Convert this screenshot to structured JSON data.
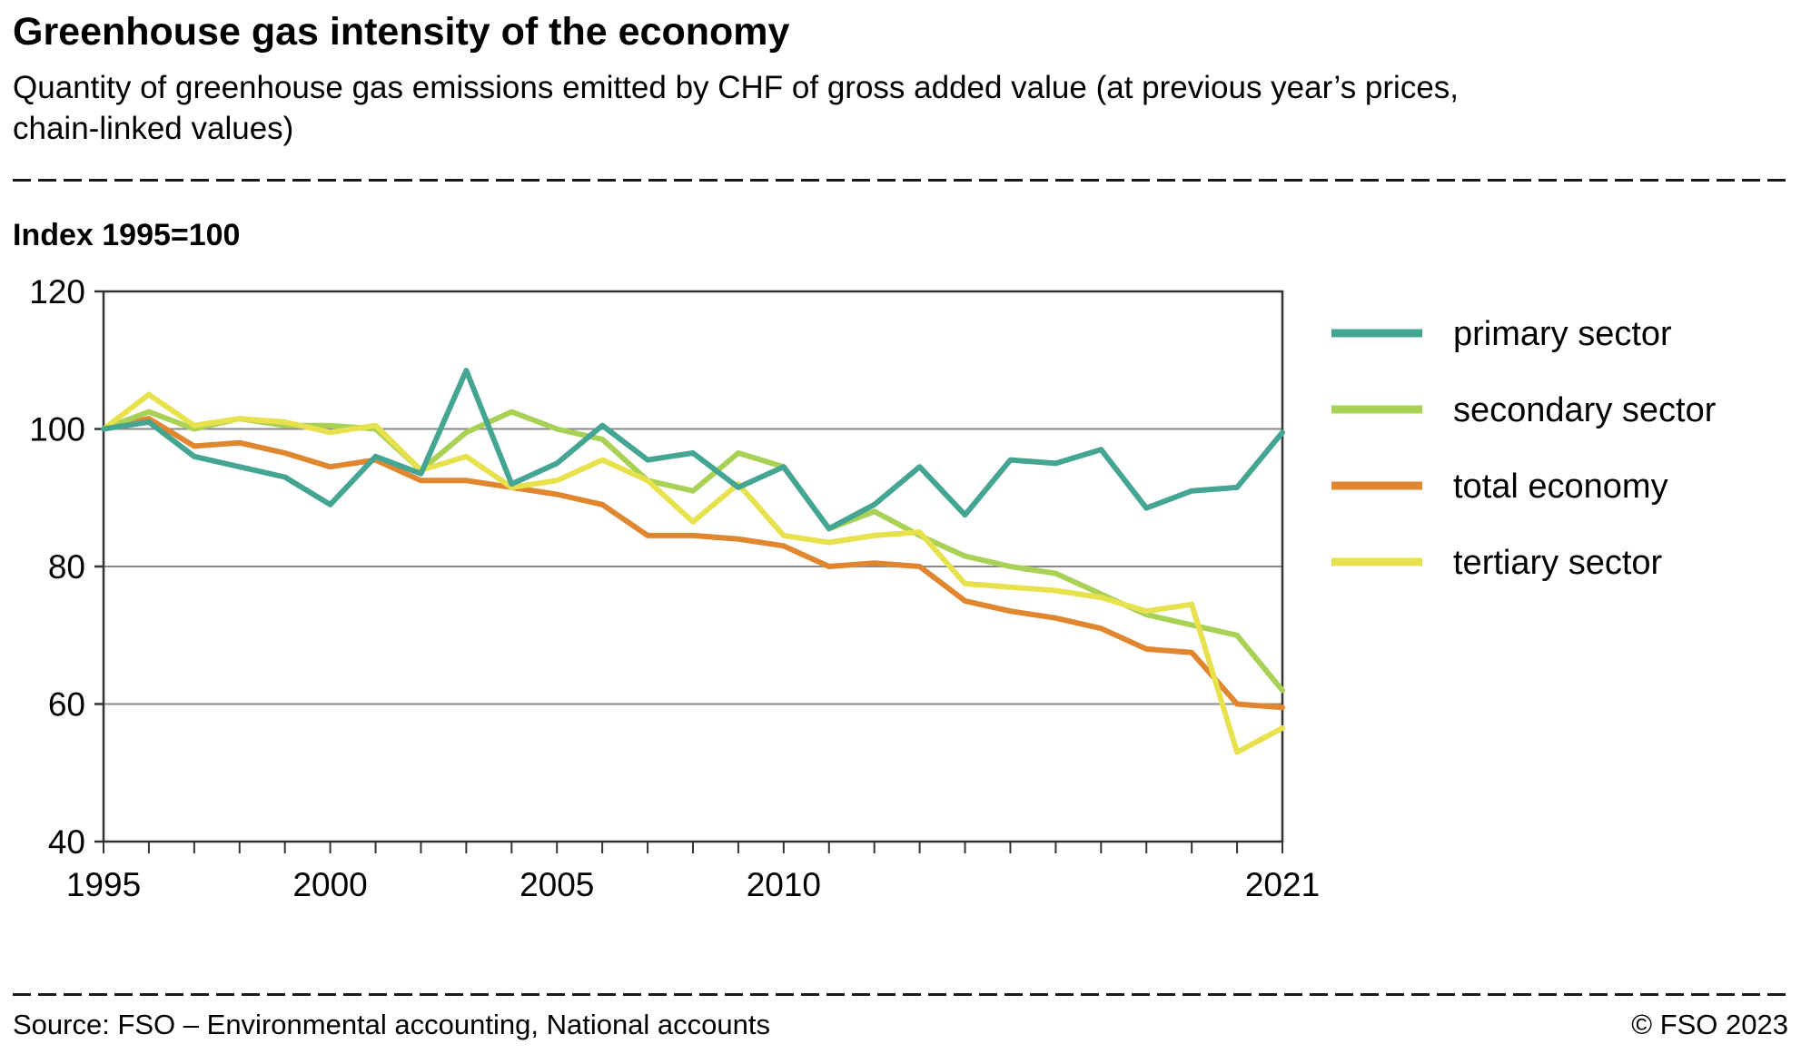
{
  "header": {
    "title": "Greenhouse gas intensity of the economy",
    "subtitle": "Quantity of greenhouse gas emissions emitted by CHF of gross added value (at previous year’s prices, chain-linked values)"
  },
  "chart_data": {
    "type": "line",
    "title": "Greenhouse gas intensity of the economy",
    "index_note": "Index 1995=100",
    "xlabel": "",
    "ylabel": "Index 1995=100",
    "grid": "horizontal",
    "legend_position": "right",
    "ylim": [
      40,
      120
    ],
    "yticks": [
      40,
      60,
      80,
      100,
      120
    ],
    "grid_yticks": [
      60,
      80,
      100
    ],
    "x": [
      1995,
      1996,
      1997,
      1998,
      1999,
      2000,
      2001,
      2002,
      2003,
      2004,
      2005,
      2006,
      2007,
      2008,
      2009,
      2010,
      2011,
      2012,
      2013,
      2014,
      2015,
      2016,
      2017,
      2018,
      2019,
      2020,
      2021
    ],
    "xticks_labeled": [
      1995,
      2000,
      2005,
      2010,
      2021
    ],
    "series": [
      {
        "name": "primary sector",
        "color": "#44a593",
        "values": [
          100,
          101,
          96,
          94.5,
          93,
          89,
          96,
          93.5,
          108.5,
          92,
          95,
          100.5,
          95.5,
          96.5,
          91.5,
          94.5,
          85.5,
          89,
          94.5,
          87.5,
          95.5,
          95,
          97,
          88.5,
          91,
          91.5,
          99.5
        ]
      },
      {
        "name": "secondary sector",
        "color": "#a9d155",
        "values": [
          100,
          102.5,
          100,
          101.5,
          100.5,
          100.5,
          100,
          94,
          99.5,
          102.5,
          100,
          98.5,
          92.5,
          91,
          96.5,
          94.5,
          85.5,
          88,
          84.5,
          81.5,
          80,
          79,
          76,
          73,
          71.5,
          70,
          62
        ]
      },
      {
        "name": "total economy",
        "color": "#e0862f",
        "values": [
          100,
          101.5,
          97.5,
          98,
          96.5,
          94.5,
          95.5,
          92.5,
          92.5,
          91.5,
          90.5,
          89,
          84.5,
          84.5,
          84,
          83,
          80,
          80.5,
          80,
          75,
          73.5,
          72.5,
          71,
          68,
          67.5,
          60,
          59.5
        ]
      },
      {
        "name": "tertiary sector",
        "color": "#e8e14e",
        "values": [
          100,
          105,
          100.5,
          101.5,
          101,
          99.5,
          100.5,
          94,
          96,
          91.5,
          92.5,
          95.5,
          92.5,
          86.5,
          92,
          84.5,
          83.5,
          84.5,
          85,
          77.5,
          77,
          76.5,
          75.5,
          73.5,
          74.5,
          53,
          56.5
        ]
      }
    ],
    "legend_order": [
      "primary sector",
      "secondary sector",
      "total economy",
      "tertiary sector"
    ],
    "draw_order": [
      "total economy",
      "secondary sector",
      "tertiary sector",
      "primary sector"
    ]
  },
  "footer": {
    "source": "Source: FSO – Environmental accounting, National accounts",
    "copyright": "© FSO 2023"
  }
}
